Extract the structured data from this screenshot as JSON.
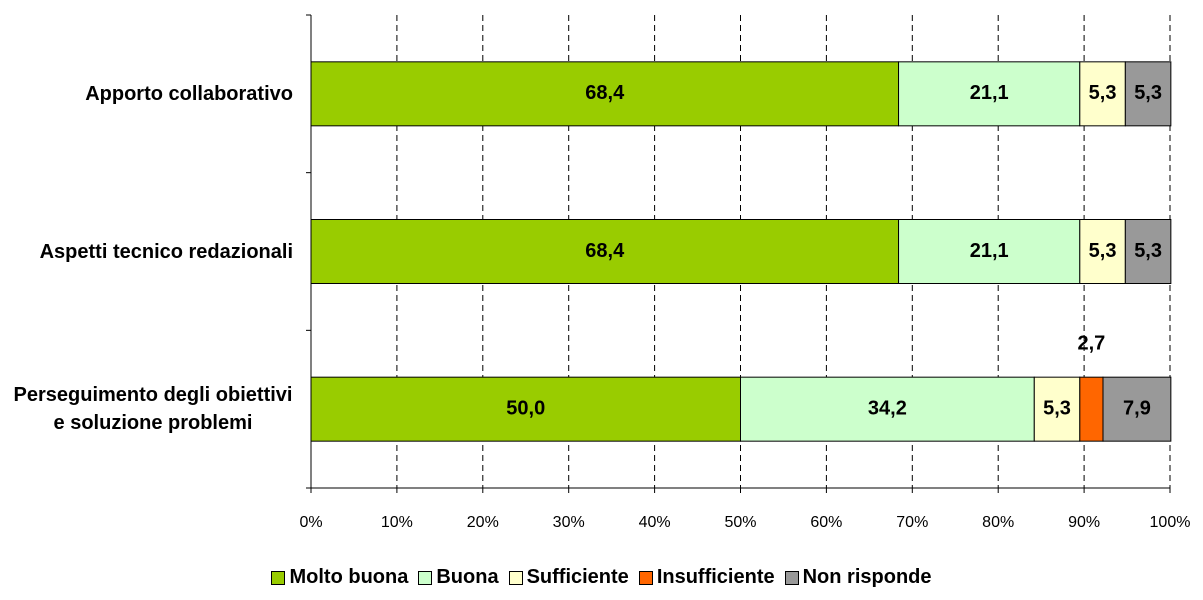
{
  "chart_data": {
    "type": "stacked_bar_horizontal",
    "categories": [
      "Apporto collaborativo",
      "Aspetti tecnico redazionali",
      "Perseguimento degli obiettivi e soluzione problemi"
    ],
    "series": [
      {
        "name": "Molto buona",
        "color": "#99cc00",
        "values": [
          68.4,
          68.4,
          50.0
        ],
        "value_labels": [
          "68,4",
          "68,4",
          "50,0"
        ]
      },
      {
        "name": "Buona",
        "color": "#ccffcc",
        "values": [
          21.1,
          21.1,
          34.2
        ],
        "value_labels": [
          "21,1",
          "21,1",
          "34,2"
        ]
      },
      {
        "name": "Sufficiente",
        "color": "#ffffcc",
        "values": [
          5.3,
          5.3,
          5.3
        ],
        "value_labels": [
          "5,3",
          "5,3",
          "5,3"
        ]
      },
      {
        "name": "Insufficiente",
        "color": "#ff6600",
        "values": [
          null,
          null,
          2.7
        ],
        "value_labels": [
          null,
          null,
          "2,7"
        ]
      },
      {
        "name": "Non risponde",
        "color": "#999999",
        "values": [
          5.3,
          5.3,
          7.9
        ],
        "value_labels": [
          "5,3",
          "5,3",
          "7,9"
        ]
      }
    ],
    "xlim": [
      0,
      100
    ],
    "xticks": [
      {
        "value": 0,
        "label": "0%"
      },
      {
        "value": 10,
        "label": "10%"
      },
      {
        "value": 20,
        "label": "20%"
      },
      {
        "value": 30,
        "label": "30%"
      },
      {
        "value": 40,
        "label": "40%"
      },
      {
        "value": 50,
        "label": "50%"
      },
      {
        "value": 60,
        "label": "60%"
      },
      {
        "value": 70,
        "label": "70%"
      },
      {
        "value": 80,
        "label": "80%"
      },
      {
        "value": 90,
        "label": "90%"
      },
      {
        "value": 100,
        "label": "100%"
      }
    ],
    "grid": true,
    "legend": "bottom"
  }
}
